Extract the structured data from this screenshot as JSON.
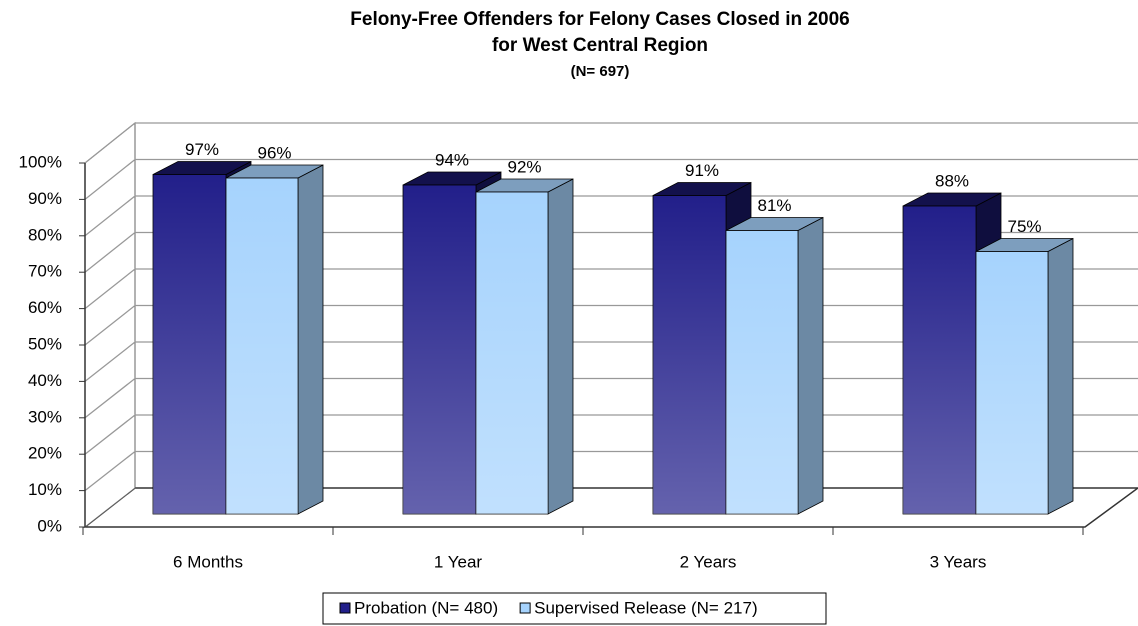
{
  "chart_data": {
    "type": "bar3d",
    "title": "Felony-Free Offenders for Felony Cases Closed in 2006",
    "subtitle": "for West Central Region",
    "annotation": "(N= 697)",
    "categories": [
      "6 Months",
      "1 Year",
      "2 Years",
      "3 Years"
    ],
    "series": [
      {
        "name": "Probation (N= 480)",
        "color": "#221f8a",
        "values": [
          97,
          94,
          91,
          88
        ],
        "value_labels": [
          "97%",
          "94%",
          "91%",
          "88%"
        ]
      },
      {
        "name": "Supervised Release (N= 217)",
        "color": "#a6d3fd",
        "values": [
          96,
          92,
          81,
          75
        ],
        "value_labels": [
          "96%",
          "92%",
          "81%",
          "75%"
        ]
      }
    ],
    "ylim": [
      0,
      100
    ],
    "yticks": [
      {
        "value": 0,
        "label": "0%"
      },
      {
        "value": 10,
        "label": "10%"
      },
      {
        "value": 20,
        "label": "20%"
      },
      {
        "value": 30,
        "label": "30%"
      },
      {
        "value": 40,
        "label": "40%"
      },
      {
        "value": 50,
        "label": "50%"
      },
      {
        "value": 60,
        "label": "60%"
      },
      {
        "value": 70,
        "label": "70%"
      },
      {
        "value": 80,
        "label": "80%"
      },
      {
        "value": 90,
        "label": "90%"
      },
      {
        "value": 100,
        "label": "100%"
      }
    ],
    "grid": true,
    "legend": "bottom"
  }
}
